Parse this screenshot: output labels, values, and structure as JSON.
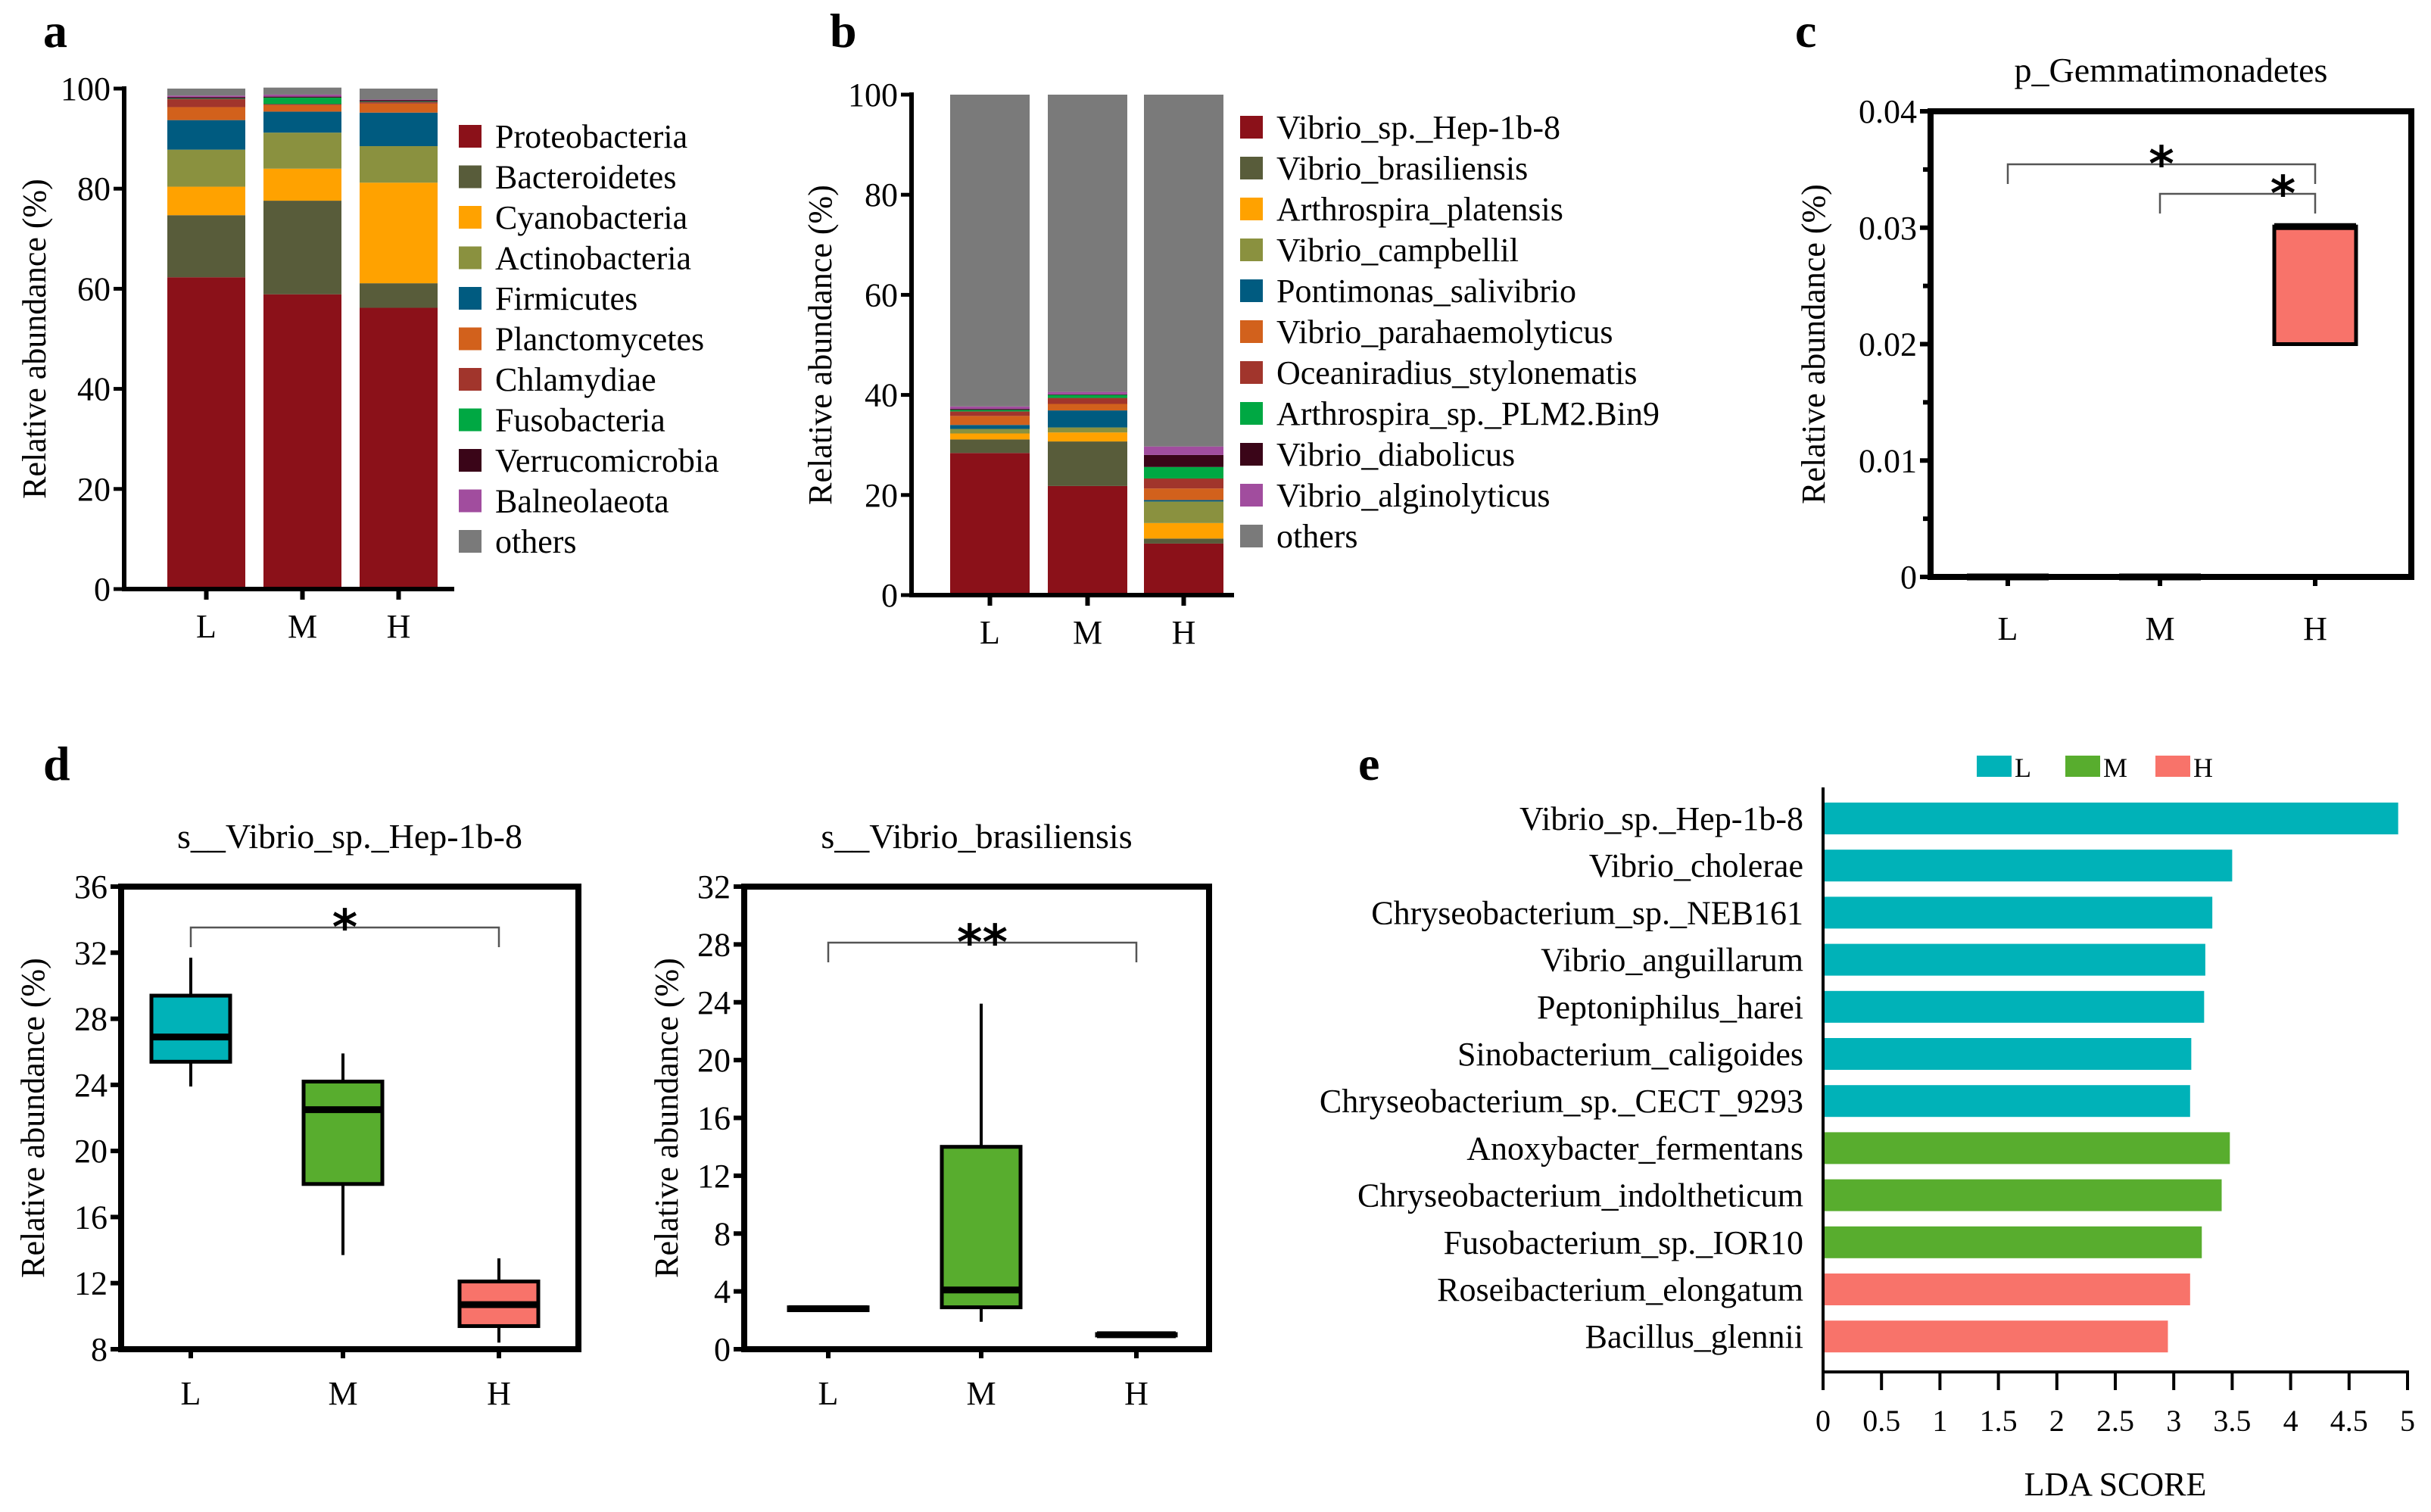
{
  "chart_data": [
    {
      "id": "a",
      "panel_label": "a",
      "type": "bar",
      "stacked": true,
      "categories": [
        "L",
        "M",
        "H"
      ],
      "ylabel": "Relative abundance (%)",
      "ylim": [
        0,
        100
      ],
      "yticks": [
        0,
        20,
        40,
        60,
        80,
        100
      ],
      "legend_position": "right",
      "series": [
        {
          "name": "Proteobacteria",
          "color": "#8B1119",
          "values": [
            62.3,
            58.9,
            56.2
          ]
        },
        {
          "name": "Bacteroidetes",
          "color": "#585C3A",
          "values": [
            12.4,
            18.7,
            4.9
          ]
        },
        {
          "name": "Cyanobacteria",
          "color": "#FFA200",
          "values": [
            5.7,
            6.4,
            20.1
          ]
        },
        {
          "name": "Actinobacteria",
          "color": "#8A913F",
          "values": [
            7.4,
            7.2,
            7.3
          ]
        },
        {
          "name": "Firmicutes",
          "color": "#005B80",
          "values": [
            5.9,
            4.2,
            6.7
          ]
        },
        {
          "name": "Planctomycetes",
          "color": "#D2611C",
          "values": [
            2.6,
            1.3,
            1.8
          ]
        },
        {
          "name": "Chlamydiae",
          "color": "#A1352C",
          "values": [
            1.6,
            0.2,
            0.3
          ]
        },
        {
          "name": "Fusobacteria",
          "color": "#00A843",
          "values": [
            0.1,
            1.3,
            0.1
          ]
        },
        {
          "name": "Verrucomicrobia",
          "color": "#3A0518",
          "values": [
            0.3,
            0.2,
            0.3
          ]
        },
        {
          "name": "Balneolaeota",
          "color": "#A14D9E",
          "values": [
            0.3,
            0.4,
            0.1
          ]
        },
        {
          "name": "others",
          "color": "#7A7A7A",
          "values": [
            1.4,
            1.4,
            2.2
          ]
        }
      ]
    },
    {
      "id": "b",
      "panel_label": "b",
      "type": "bar",
      "stacked": true,
      "categories": [
        "L",
        "M",
        "H"
      ],
      "ylabel": "Relative abundance (%)",
      "ylim": [
        0,
        100
      ],
      "yticks": [
        0,
        20,
        40,
        60,
        80,
        100
      ],
      "legend_position": "right",
      "series": [
        {
          "name": "Vibrio_sp._Hep-1b-8",
          "color": "#8B1119",
          "values": [
            28.4,
            21.8,
            10.3
          ]
        },
        {
          "name": "Vibrio_brasiliensis",
          "color": "#585C3A",
          "values": [
            2.7,
            8.9,
            1.0
          ]
        },
        {
          "name": "Arthrospira_platensis",
          "color": "#FFA200",
          "values": [
            1.2,
            1.8,
            3.1
          ]
        },
        {
          "name": "Vibrio_campbellil",
          "color": "#8A913F",
          "values": [
            0.9,
            1.0,
            4.3
          ]
        },
        {
          "name": "Pontimonas_salivibrio",
          "color": "#005B80",
          "values": [
            0.8,
            3.4,
            0.3
          ]
        },
        {
          "name": "Vibrio_parahaemolyticus",
          "color": "#D2611C",
          "values": [
            1.8,
            1.3,
            2.3
          ]
        },
        {
          "name": "Oceaniradius_stylonematis",
          "color": "#A1352C",
          "values": [
            0.9,
            1.2,
            2.0
          ]
        },
        {
          "name": "Arthrospira_sp._PLM2.Bin9",
          "color": "#00A843",
          "values": [
            0.3,
            0.6,
            2.3
          ]
        },
        {
          "name": "Vibrio_diabolicus",
          "color": "#3A0518",
          "values": [
            0.2,
            0.1,
            2.4
          ]
        },
        {
          "name": "Vibrio_alginolyticus",
          "color": "#A14D9E",
          "values": [
            0.5,
            0.5,
            1.7
          ]
        },
        {
          "name": "others",
          "color": "#7A7A7A",
          "values": [
            62.3,
            59.4,
            70.3
          ]
        }
      ]
    },
    {
      "id": "c",
      "panel_label": "c",
      "type": "box",
      "title": "p_Gemmatimonadetes",
      "categories": [
        "L",
        "M",
        "H"
      ],
      "ylabel": "Relative abundance (%)",
      "ylim": [
        0,
        0.04
      ],
      "yticks": [
        "0",
        "0.01",
        "0.02",
        "0.03",
        "0.04"
      ],
      "boxes": [
        {
          "category": "L",
          "min": 0,
          "q1": 0,
          "median": 0,
          "q3": 0,
          "max": 0,
          "color": "#00B2B8"
        },
        {
          "category": "M",
          "min": 0,
          "q1": 0,
          "median": 0,
          "q3": 0,
          "max": 0,
          "color": "#58AD2E"
        },
        {
          "category": "H",
          "min": 0.02,
          "q1": 0.02,
          "median": 0.0301,
          "q3": 0.0301,
          "max": 0.0301,
          "color": "#F8736A"
        }
      ],
      "significance": [
        {
          "from": "L",
          "to": "H",
          "label": "*"
        },
        {
          "from": "M",
          "to": "H",
          "label": "*"
        }
      ]
    },
    {
      "id": "d1",
      "panel_label": "d",
      "type": "box",
      "title": "s__Vibrio_sp._Hep-1b-8",
      "categories": [
        "L",
        "M",
        "H"
      ],
      "ylabel": "Relative abundance (%)",
      "ylim": [
        8,
        36
      ],
      "yticks": [
        "8",
        "12",
        "16",
        "20",
        "24",
        "28",
        "32",
        "36"
      ],
      "boxes": [
        {
          "category": "L",
          "min": 23.9,
          "q1": 25.4,
          "median": 26.9,
          "q3": 29.4,
          "max": 31.7,
          "color": "#00B2B8"
        },
        {
          "category": "M",
          "min": 13.7,
          "q1": 18.0,
          "median": 22.5,
          "q3": 24.2,
          "max": 25.9,
          "color": "#58AD2E"
        },
        {
          "category": "H",
          "min": 8.4,
          "q1": 9.4,
          "median": 10.7,
          "q3": 12.1,
          "max": 13.5,
          "color": "#F8736A"
        }
      ],
      "significance": [
        {
          "from": "L",
          "to": "H",
          "label": "*"
        }
      ]
    },
    {
      "id": "d2",
      "panel_label": "",
      "type": "box",
      "title": "s__Vibrio_brasiliensis",
      "categories": [
        "L",
        "M",
        "H"
      ],
      "ylabel": "Relative abundance (%)",
      "ylim": [
        0,
        32
      ],
      "yticks": [
        "0",
        "4",
        "8",
        "12",
        "16",
        "20",
        "24",
        "28",
        "32"
      ],
      "boxes": [
        {
          "category": "L",
          "min": 2.6,
          "q1": 2.7,
          "median": 2.8,
          "q3": 2.9,
          "max": 3.0,
          "color": "#00B2B8"
        },
        {
          "category": "M",
          "min": 1.9,
          "q1": 2.9,
          "median": 4.1,
          "q3": 14.0,
          "max": 23.9,
          "color": "#58AD2E"
        },
        {
          "category": "H",
          "min": 0.9,
          "q1": 0.95,
          "median": 1.0,
          "q3": 1.05,
          "max": 1.1,
          "color": "#F8736A"
        }
      ],
      "significance": [
        {
          "from": "L",
          "to": "H",
          "label": "**"
        }
      ]
    },
    {
      "id": "e",
      "panel_label": "e",
      "type": "bar",
      "orientation": "horizontal",
      "xlabel": "LDA SCORE",
      "xlim": [
        0,
        5
      ],
      "xticks": [
        "0",
        "0.5",
        "1",
        "1.5",
        "2",
        "2.5",
        "3",
        "3.5",
        "4",
        "4.5",
        "5"
      ],
      "legend_position": "top",
      "legend": [
        {
          "name": "L",
          "color": "#00B2B8"
        },
        {
          "name": "M",
          "color": "#58AD2E"
        },
        {
          "name": "H",
          "color": "#F8736A"
        }
      ],
      "categories": [
        "Vibrio_sp._Hep-1b-8",
        "Vibrio_cholerae",
        "Chryseobacterium_sp._NEB161",
        "Vibrio_anguillarum",
        "Peptoniphilus_harei",
        "Sinobacterium_caligoides",
        "Chryseobacterium_sp._CECT_9293",
        "Anoxybacter_fermentans",
        "Chryseobacterium_indoltheticum",
        "Fusobacterium_sp._IOR10",
        "Roseibacterium_elongatum",
        "Bacillus_glennii"
      ],
      "values": [
        4.92,
        3.5,
        3.33,
        3.27,
        3.26,
        3.15,
        3.14,
        3.48,
        3.41,
        3.24,
        3.14,
        2.95
      ],
      "groups": [
        "L",
        "L",
        "L",
        "L",
        "L",
        "L",
        "L",
        "M",
        "M",
        "M",
        "H",
        "H"
      ]
    }
  ]
}
